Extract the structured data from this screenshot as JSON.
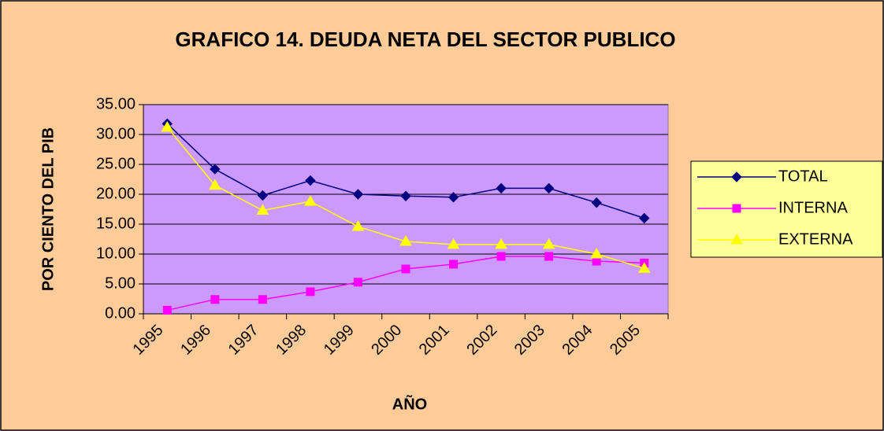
{
  "chart_data": {
    "type": "line",
    "title": "GRAFICO 14. DEUDA NETA DEL SECTOR PUBLICO",
    "x_label": "AÑO",
    "y_label": "POR CIENTO DEL PIB",
    "categories": [
      "1995",
      "1996",
      "1997",
      "1998",
      "1999",
      "2000",
      "2001",
      "2002",
      "2003",
      "2004",
      "2005"
    ],
    "series": [
      {
        "name": "TOTAL",
        "color": "#000080",
        "marker": "diamond",
        "values": [
          31.8,
          24.2,
          19.8,
          22.3,
          20.0,
          19.7,
          19.5,
          21.0,
          21.0,
          18.6,
          16.0
        ]
      },
      {
        "name": "INTERNA",
        "color": "#FF00FF",
        "marker": "square",
        "values": [
          0.6,
          2.4,
          2.4,
          3.7,
          5.3,
          7.5,
          8.3,
          9.6,
          9.6,
          8.8,
          8.5
        ]
      },
      {
        "name": "EXTERNA",
        "color": "#FFFF00",
        "marker": "triangle",
        "values": [
          31.2,
          21.5,
          17.3,
          18.8,
          14.6,
          12.1,
          11.6,
          11.6,
          11.6,
          10.0,
          7.6
        ]
      }
    ],
    "ylim": [
      0,
      35
    ],
    "yticks": [
      {
        "value": 0,
        "label": "0.00"
      },
      {
        "value": 5,
        "label": "5.00"
      },
      {
        "value": 10,
        "label": "10.00"
      },
      {
        "value": 15,
        "label": "15.00"
      },
      {
        "value": 20,
        "label": "20.00"
      },
      {
        "value": 25,
        "label": "25.00"
      },
      {
        "value": 30,
        "label": "30.00"
      },
      {
        "value": 35,
        "label": "35.00"
      }
    ],
    "grid": true,
    "legend": "right"
  }
}
